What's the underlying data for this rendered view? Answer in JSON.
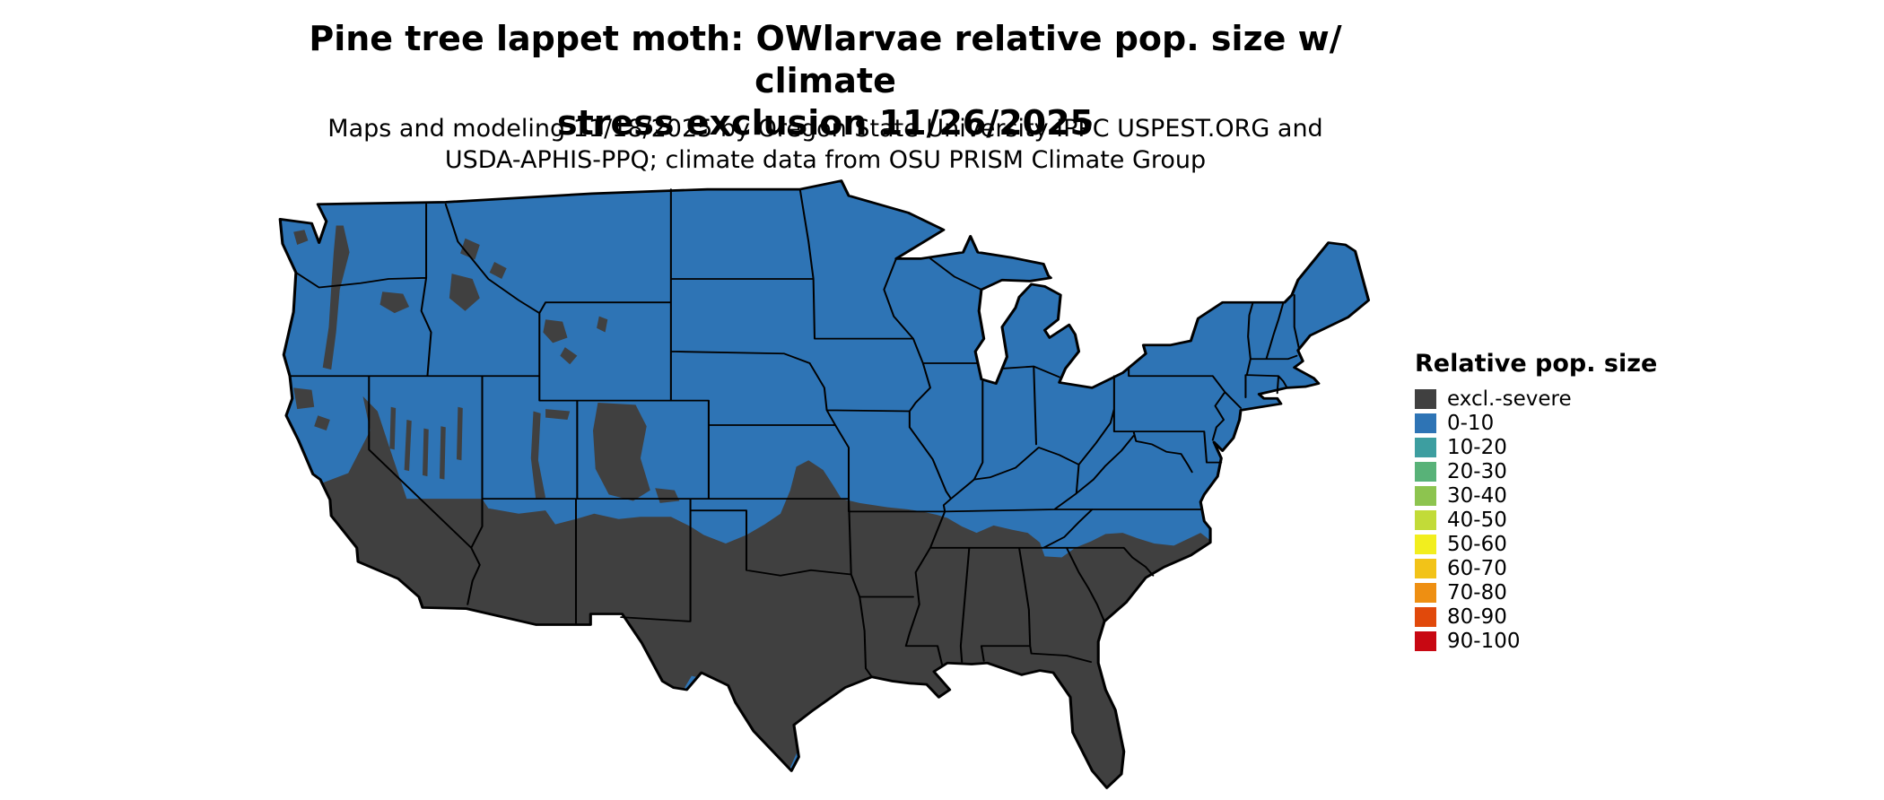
{
  "title": {
    "line1": "Pine tree lappet moth: OWlarvae relative pop. size w/ climate",
    "line2": "stress exclusion 11/26/2025"
  },
  "subtitle": {
    "line1": "Maps and modeling 11/18/2025 by Oregon State University IPPC USPEST.ORG and",
    "line2": "USDA-APHIS-PPQ; climate data from OSU PRISM Climate Group"
  },
  "legend": {
    "title": "Relative pop. size",
    "items": [
      {
        "label": "excl.-severe",
        "color": "#404040"
      },
      {
        "label": "0-10",
        "color": "#2E74B5"
      },
      {
        "label": "10-20",
        "color": "#3D9EA0"
      },
      {
        "label": "20-30",
        "color": "#58B278"
      },
      {
        "label": "30-40",
        "color": "#8DC44F"
      },
      {
        "label": "40-50",
        "color": "#C2DB38"
      },
      {
        "label": "50-60",
        "color": "#F2EE1E"
      },
      {
        "label": "60-70",
        "color": "#F2C318"
      },
      {
        "label": "70-80",
        "color": "#EE8F12"
      },
      {
        "label": "80-90",
        "color": "#E1490B"
      },
      {
        "label": "90-100",
        "color": "#C80812"
      }
    ]
  },
  "map": {
    "region_fill": "#2E74B5",
    "excluded_fill": "#404040",
    "border_color": "#000000",
    "background": "#FFFFFF"
  }
}
